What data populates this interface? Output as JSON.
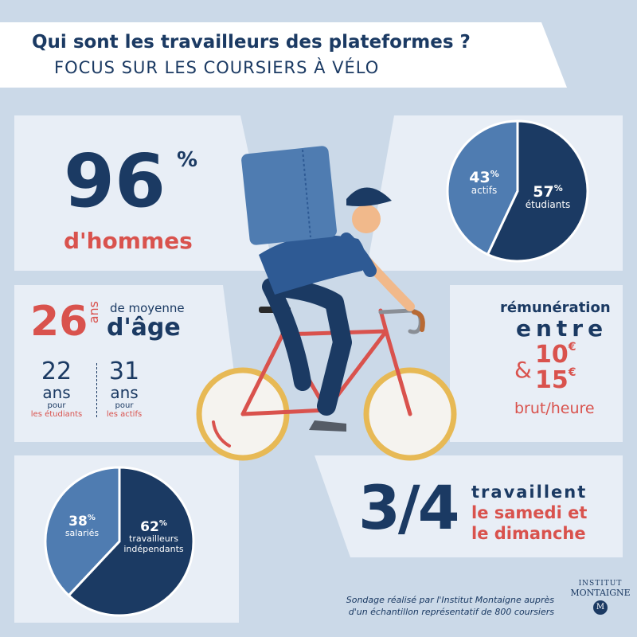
{
  "title": "Qui sont les travailleurs des plateformes ?",
  "subtitle": "FOCUS SUR LES COURSIERS À VÉLO",
  "stat_men": {
    "value": "96",
    "unit": "%",
    "label": "d'hommes"
  },
  "stat_age": {
    "value": "26",
    "unit": "ans",
    "label_top": "de moyenne",
    "label_bottom": "d'âge",
    "students": {
      "value": "22",
      "unit": "ans",
      "pour": "pour",
      "who": "les étudiants"
    },
    "workers": {
      "value": "31",
      "unit": "ans",
      "pour": "pour",
      "who": "les actifs"
    }
  },
  "stat_pay": {
    "line1": "rémunération",
    "line2": "entre",
    "amp": "&",
    "low": "10",
    "high": "15",
    "currency": "€",
    "unit": "brut/heure"
  },
  "stat_weekend": {
    "fraction": "3/4",
    "line1": "travaillent",
    "line2": "le samedi et",
    "line3": "le dimanche"
  },
  "pie_status": [
    {
      "value": "43",
      "pct": "%",
      "label": "actifs",
      "color": "#4f7cb1"
    },
    {
      "value": "57",
      "pct": "%",
      "label": "étudiants",
      "color": "#1b3a63"
    }
  ],
  "pie_contract": [
    {
      "value": "38",
      "pct": "%",
      "label": "salariés",
      "color": "#4f7cb1"
    },
    {
      "value": "62",
      "pct": "%",
      "label_line1": "travailleurs",
      "label_line2": "indépendants",
      "color": "#1b3a63"
    }
  ],
  "footer": {
    "line1": "Sondage réalisé par l'Institut Montaigne auprès",
    "line2": "d'un échantillon représentatif de 800 coursiers"
  },
  "logo": {
    "line1": "INSTITUT",
    "line2": "MONTAIGNE",
    "mark": "M"
  },
  "colors": {
    "navy": "#1b3a63",
    "red": "#d9524d",
    "panel": "#e8eef6",
    "bg": "#cbd9e8",
    "blue": "#4f7cb1"
  }
}
